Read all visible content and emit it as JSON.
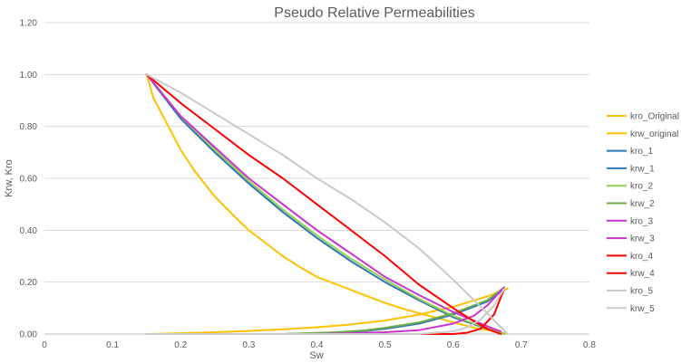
{
  "chart_data": {
    "type": "line",
    "title": "Pseudo Relative Permeabilities",
    "xlabel": "Sw",
    "ylabel": "Krw, Kro",
    "xlim": [
      0,
      0.8
    ],
    "ylim": [
      0,
      1.2
    ],
    "xticks": [
      0,
      0.1,
      0.2,
      0.3,
      0.4,
      0.5,
      0.6,
      0.7,
      0.8
    ],
    "xtick_labels": [
      "0",
      "0.1",
      "0.2",
      "0.3",
      "0.4",
      "0.5",
      "0.6",
      "0.7",
      "0.8"
    ],
    "yticks": [
      0,
      0.2,
      0.4,
      0.6,
      0.8,
      1.0,
      1.2
    ],
    "ytick_labels": [
      "0.00",
      "0.20",
      "0.40",
      "0.60",
      "0.80",
      "1.00",
      "1.20"
    ],
    "grid": "horizontal",
    "legend_position": "right",
    "series": [
      {
        "name": "kro_Original",
        "color": "#FFC000",
        "x": [
          0.15,
          0.16,
          0.18,
          0.2,
          0.22,
          0.25,
          0.28,
          0.3,
          0.33,
          0.35,
          0.38,
          0.4,
          0.43,
          0.45,
          0.48,
          0.5,
          0.53,
          0.55,
          0.58,
          0.6,
          0.63,
          0.65,
          0.68
        ],
        "y": [
          1.0,
          0.91,
          0.81,
          0.71,
          0.63,
          0.53,
          0.45,
          0.4,
          0.34,
          0.3,
          0.25,
          0.22,
          0.19,
          0.17,
          0.14,
          0.12,
          0.095,
          0.08,
          0.06,
          0.045,
          0.025,
          0.015,
          0.0
        ]
      },
      {
        "name": "krw_original",
        "color": "#FFC000",
        "x": [
          0.15,
          0.2,
          0.25,
          0.3,
          0.35,
          0.4,
          0.45,
          0.5,
          0.55,
          0.6,
          0.65,
          0.68
        ],
        "y": [
          0.0,
          0.003,
          0.007,
          0.012,
          0.018,
          0.026,
          0.037,
          0.052,
          0.075,
          0.105,
          0.145,
          0.175
        ]
      },
      {
        "name": "kro_1",
        "color": "#2E75B6",
        "x": [
          0.15,
          0.2,
          0.25,
          0.3,
          0.35,
          0.4,
          0.45,
          0.5,
          0.55,
          0.6,
          0.65,
          0.675
        ],
        "y": [
          1.0,
          0.83,
          0.7,
          0.58,
          0.47,
          0.37,
          0.28,
          0.2,
          0.13,
          0.065,
          0.02,
          0.0
        ]
      },
      {
        "name": "krw_1",
        "color": "#2E75B6",
        "x": [
          0.15,
          0.35,
          0.42,
          0.47,
          0.5,
          0.55,
          0.6,
          0.65,
          0.675
        ],
        "y": [
          0.0,
          0.0,
          0.005,
          0.012,
          0.02,
          0.04,
          0.075,
          0.125,
          0.175
        ]
      },
      {
        "name": "kro_2",
        "color": "#92D050",
        "x": [
          0.15,
          0.2,
          0.25,
          0.3,
          0.35,
          0.4,
          0.45,
          0.5,
          0.55,
          0.6,
          0.65,
          0.675
        ],
        "y": [
          1.0,
          0.84,
          0.71,
          0.59,
          0.48,
          0.38,
          0.29,
          0.21,
          0.135,
          0.07,
          0.022,
          0.0
        ]
      },
      {
        "name": "krw_2",
        "color": "#70AD47",
        "x": [
          0.15,
          0.35,
          0.42,
          0.47,
          0.5,
          0.55,
          0.6,
          0.65,
          0.675
        ],
        "y": [
          0.0,
          0.0,
          0.006,
          0.014,
          0.024,
          0.045,
          0.08,
          0.13,
          0.18
        ]
      },
      {
        "name": "kro_3",
        "color": "#CC33CC",
        "x": [
          0.15,
          0.2,
          0.25,
          0.3,
          0.35,
          0.4,
          0.45,
          0.5,
          0.55,
          0.6,
          0.65,
          0.67
        ],
        "y": [
          1.0,
          0.84,
          0.72,
          0.6,
          0.5,
          0.4,
          0.31,
          0.22,
          0.15,
          0.085,
          0.03,
          0.01
        ]
      },
      {
        "name": "krw_3",
        "color": "#CC33CC",
        "x": [
          0.15,
          0.4,
          0.45,
          0.5,
          0.55,
          0.6,
          0.63,
          0.65,
          0.675
        ],
        "y": [
          0.0,
          0.0,
          0.003,
          0.007,
          0.015,
          0.04,
          0.07,
          0.11,
          0.18
        ]
      },
      {
        "name": "kro_4",
        "color": "#FF0000",
        "x": [
          0.15,
          0.2,
          0.25,
          0.3,
          0.35,
          0.4,
          0.45,
          0.5,
          0.55,
          0.6,
          0.63,
          0.65,
          0.67
        ],
        "y": [
          1.0,
          0.89,
          0.79,
          0.69,
          0.6,
          0.5,
          0.4,
          0.3,
          0.19,
          0.1,
          0.05,
          0.02,
          0.0
        ]
      },
      {
        "name": "krw_4",
        "color": "#FF0000",
        "x": [
          0.15,
          0.6,
          0.62,
          0.64,
          0.66,
          0.675
        ],
        "y": [
          0.0,
          0.0,
          0.005,
          0.02,
          0.075,
          0.175
        ]
      },
      {
        "name": "kro_5",
        "color": "#C9C9C9",
        "x": [
          0.15,
          0.2,
          0.25,
          0.3,
          0.35,
          0.4,
          0.45,
          0.5,
          0.55,
          0.6,
          0.65,
          0.68
        ],
        "y": [
          1.0,
          0.93,
          0.85,
          0.77,
          0.69,
          0.6,
          0.52,
          0.43,
          0.33,
          0.21,
          0.08,
          0.0
        ]
      },
      {
        "name": "krw_5",
        "color": "#C9C9C9",
        "x": [
          0.15,
          0.55,
          0.6,
          0.62,
          0.64,
          0.66,
          0.675
        ],
        "y": [
          0.0,
          0.0,
          0.01,
          0.025,
          0.055,
          0.11,
          0.175
        ]
      }
    ]
  }
}
